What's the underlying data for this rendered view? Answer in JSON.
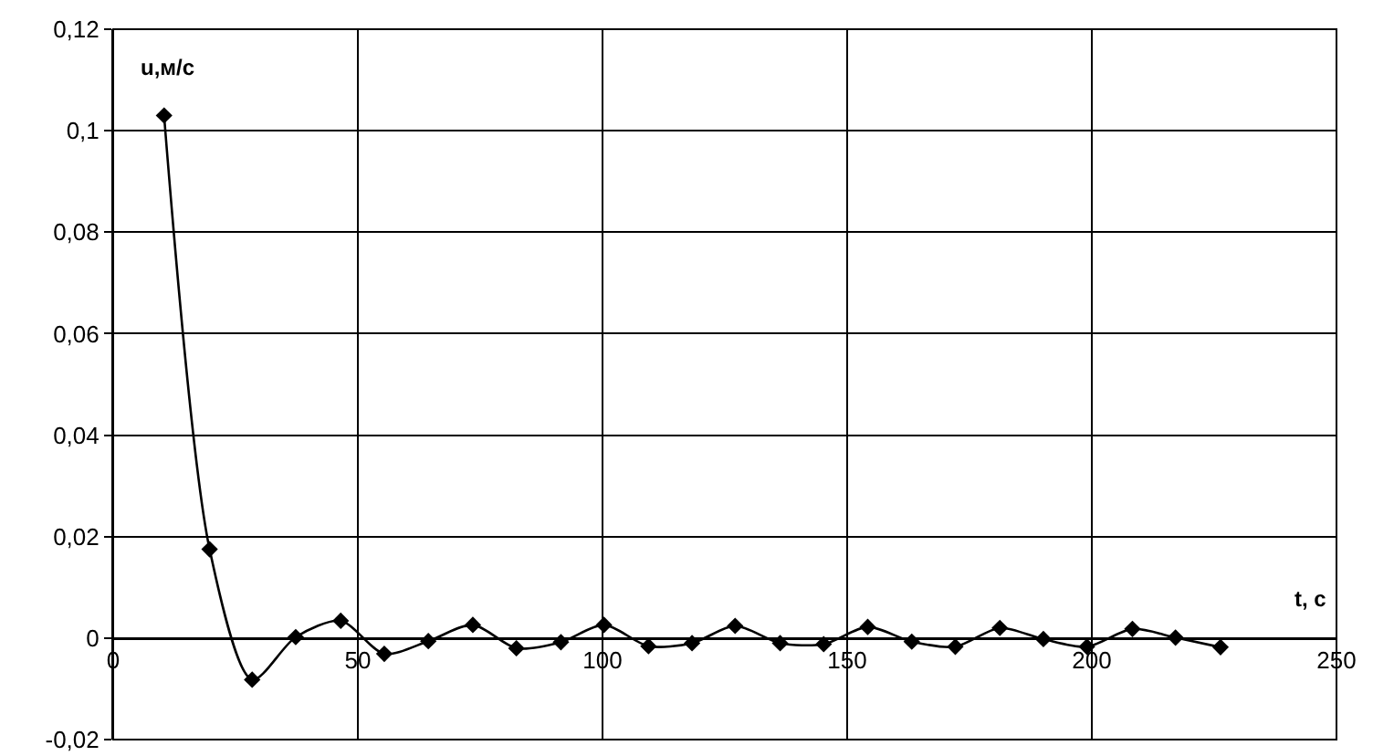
{
  "chart_data": {
    "type": "line",
    "xlabel": "t, с",
    "ylabel": "u,м/с",
    "x": [
      10.4,
      19.7,
      28.4,
      37.3,
      46.5,
      55.4,
      64.4,
      73.5,
      82.4,
      91.5,
      100.3,
      109.4,
      118.3,
      127.1,
      136.3,
      145.2,
      154.2,
      163.2,
      172.1,
      181.2,
      190.1,
      199,
      208.3,
      217.1,
      226.3
    ],
    "series": [
      {
        "color": "#000000",
        "values": [
          0.103,
          0.0175,
          -0.0082,
          0.0002,
          0.0034,
          -0.0031,
          -0.0006,
          0.0026,
          -0.002,
          -0.0008,
          0.0026,
          -0.0016,
          -0.001,
          0.0024,
          -0.001,
          -0.0012,
          0.0022,
          -0.0007,
          -0.0017,
          0.002,
          -0.0002,
          -0.0017,
          0.0018,
          0.0001,
          -0.0018
        ]
      }
    ],
    "xlim": [
      0,
      250
    ],
    "xticks": [
      0,
      50,
      100,
      150,
      200,
      250
    ],
    "ylim": [
      -0.02,
      0.12
    ],
    "yticks": [
      {
        "value": -0.02,
        "label": "-0,02"
      },
      {
        "value": 0,
        "label": "0"
      },
      {
        "value": 0.02,
        "label": "0,02"
      },
      {
        "value": 0.04,
        "label": "0,04"
      },
      {
        "value": 0.06,
        "label": "0,06"
      },
      {
        "value": 0.08,
        "label": "0,08"
      },
      {
        "value": 0.1,
        "label": "0,1"
      },
      {
        "value": 0.12,
        "label": "0,12"
      }
    ],
    "grid": true,
    "marker": "diamond",
    "line_style": "solid"
  }
}
